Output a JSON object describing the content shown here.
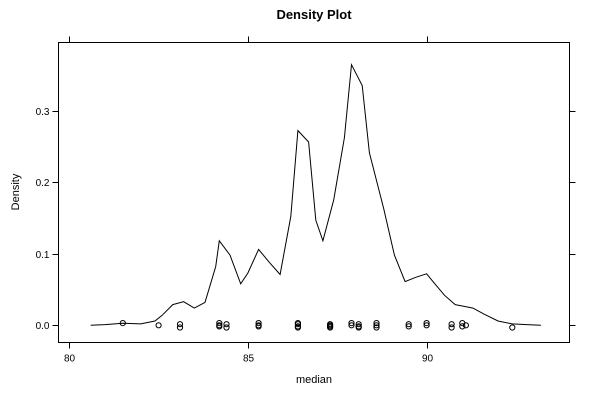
{
  "chart_data": {
    "type": "line",
    "title": "Density Plot",
    "xlabel": "median",
    "ylabel": "Density",
    "xlim": [
      79.7,
      94.0
    ],
    "ylim": [
      -0.024,
      0.395
    ],
    "x_ticks": [
      80,
      85,
      90
    ],
    "y_ticks": [
      0.0,
      0.1,
      0.2,
      0.3
    ],
    "x_tick_labels": [
      "80",
      "85",
      "90"
    ],
    "y_tick_labels": [
      "0.0",
      "0.1",
      "0.2",
      "0.3"
    ],
    "grid": false,
    "legend": "none",
    "line_color": "#000000",
    "series": [
      {
        "x": [
          80.6,
          81.0,
          81.5,
          82.0,
          82.4,
          82.6,
          82.9,
          83.2,
          83.5,
          83.8,
          84.1,
          84.2,
          84.5,
          84.8,
          85.0,
          85.3,
          85.6,
          85.9,
          86.2,
          86.4,
          86.7,
          86.9,
          87.1,
          87.4,
          87.7,
          87.9,
          88.2,
          88.4,
          88.8,
          89.1,
          89.4,
          89.7,
          90.0,
          90.2,
          90.5,
          90.8,
          91.0,
          91.3,
          91.6,
          92.0,
          92.4,
          92.8,
          93.2
        ],
        "y": [
          0.0,
          0.001,
          0.003,
          0.002,
          0.006,
          0.014,
          0.029,
          0.033,
          0.024,
          0.032,
          0.082,
          0.118,
          0.098,
          0.058,
          0.073,
          0.106,
          0.088,
          0.071,
          0.152,
          0.272,
          0.256,
          0.147,
          0.118,
          0.175,
          0.262,
          0.364,
          0.335,
          0.241,
          0.163,
          0.098,
          0.061,
          0.067,
          0.072,
          0.06,
          0.042,
          0.029,
          0.027,
          0.024,
          0.016,
          0.006,
          0.002,
          0.001,
          0.0
        ]
      }
    ],
    "rug_points": [
      81.5,
      82.5,
      83.1,
      83.1,
      84.2,
      84.2,
      84.2,
      84.4,
      84.4,
      85.3,
      85.3,
      85.3,
      86.4,
      86.4,
      86.4,
      86.4,
      87.3,
      87.3,
      87.3,
      87.3,
      87.9,
      87.9,
      88.1,
      88.1,
      88.1,
      88.6,
      88.6,
      88.6,
      89.5,
      89.5,
      90.0,
      90.0,
      90.7,
      90.7,
      91.0,
      91.0,
      91.1,
      92.4
    ]
  }
}
